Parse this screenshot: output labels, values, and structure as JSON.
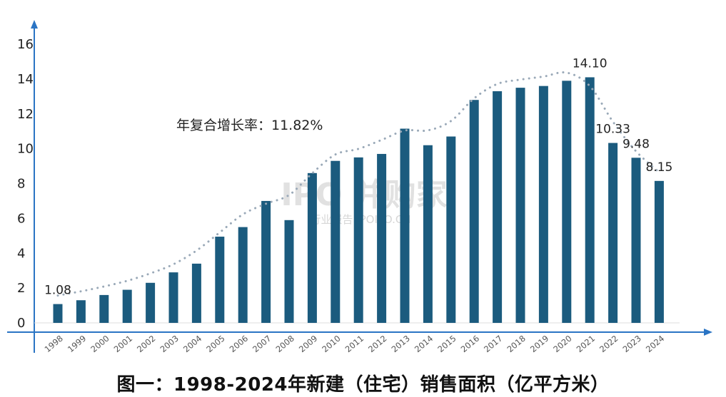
{
  "caption": "图一：1998-2024年新建（住宅）销售面积（亿平方米）",
  "annotation": "年复合增长率：11.82%",
  "watermark": {
    "brand": "IPO 并购家",
    "subtext": "行业报告 IPOIPO.CN"
  },
  "colors": {
    "bar": "#1b5b7e",
    "axis": "#2a74c4",
    "trend": "#9aa9b8"
  },
  "chart_data": {
    "type": "bar",
    "title": "图一：1998-2024年新建（住宅）销售面积（亿平方米）",
    "xlabel": "",
    "ylabel": "",
    "ylim": [
      0,
      16
    ],
    "yticks": [
      0,
      2,
      4,
      6,
      8,
      10,
      12,
      14,
      16
    ],
    "categories": [
      "1998",
      "1999",
      "2000",
      "2001",
      "2002",
      "2003",
      "2004",
      "2005",
      "2006",
      "2007",
      "2008",
      "2009",
      "2010",
      "2011",
      "2012",
      "2013",
      "2014",
      "2015",
      "2016",
      "2017",
      "2018",
      "2019",
      "2020",
      "2021",
      "2022",
      "2023",
      "2024"
    ],
    "values": [
      1.08,
      1.3,
      1.6,
      1.9,
      2.3,
      2.9,
      3.4,
      4.95,
      5.5,
      7.0,
      5.9,
      8.6,
      9.3,
      9.5,
      9.7,
      11.15,
      10.2,
      10.7,
      12.8,
      13.3,
      13.5,
      13.6,
      13.9,
      14.1,
      10.33,
      9.48,
      8.15
    ],
    "data_labels": [
      {
        "category": "1998",
        "text": "1.08"
      },
      {
        "category": "2021",
        "text": "14.10"
      },
      {
        "category": "2022",
        "text": "10.33"
      },
      {
        "category": "2023",
        "text": "9.48"
      },
      {
        "category": "2024",
        "text": "8.15"
      }
    ],
    "trendline": "dotted",
    "grid": false,
    "legend": "none"
  }
}
